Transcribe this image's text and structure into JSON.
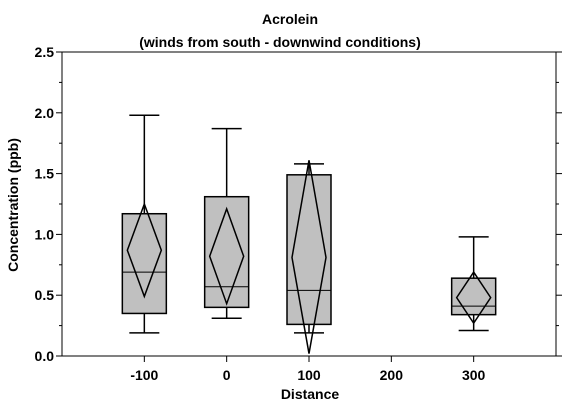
{
  "chart_data": {
    "type": "box",
    "title": "Acrolein",
    "subtitle": "(winds from south - downwind conditions)",
    "xlabel": "Distance",
    "ylabel": "Concentration (ppb)",
    "xlim": [
      -200,
      400
    ],
    "ylim": [
      0,
      2.5
    ],
    "x_ticks": [
      -100,
      0,
      100,
      200,
      300
    ],
    "y_ticks": [
      0.0,
      0.5,
      1.0,
      1.5,
      2.0,
      2.5
    ],
    "y_tick_labels": [
      "0.0",
      "0.5",
      "1.0",
      "1.5",
      "2.0",
      "2.5"
    ],
    "grid": false,
    "colors": {
      "box_fill": "#c0c0c0",
      "stroke": "#000000"
    },
    "boxes": [
      {
        "x": -100,
        "whisker_low": 0.19,
        "q1": 0.35,
        "median": 0.69,
        "q3": 1.17,
        "whisker_high": 1.98,
        "mean": 0.87,
        "ci_low": 0.49,
        "ci_high": 1.25
      },
      {
        "x": 0,
        "whisker_low": 0.31,
        "q1": 0.4,
        "median": 0.57,
        "q3": 1.31,
        "whisker_high": 1.87,
        "mean": 0.82,
        "ci_low": 0.43,
        "ci_high": 1.21
      },
      {
        "x": 100,
        "whisker_low": 0.19,
        "q1": 0.26,
        "median": 0.54,
        "q3": 1.49,
        "whisker_high": 1.58,
        "mean": 0.81,
        "ci_low": 0.02,
        "ci_high": 1.61
      },
      {
        "x": 300,
        "whisker_low": 0.21,
        "q1": 0.34,
        "median": 0.41,
        "q3": 0.64,
        "whisker_high": 0.98,
        "mean": 0.48,
        "ci_low": 0.27,
        "ci_high": 0.69
      }
    ]
  }
}
